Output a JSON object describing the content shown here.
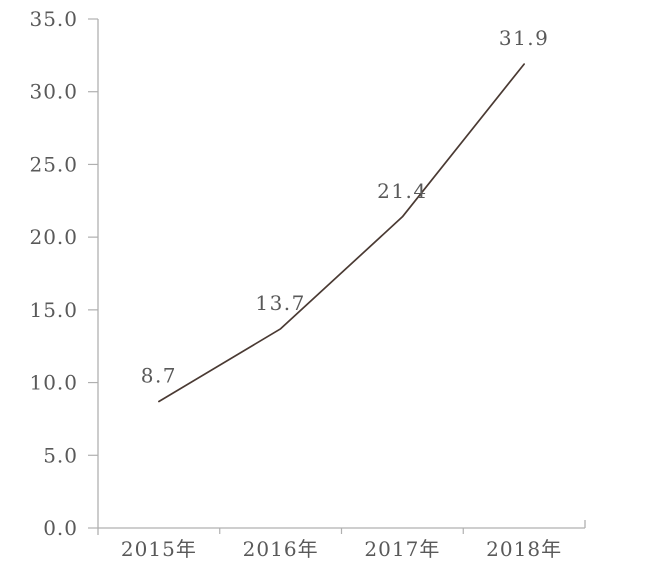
{
  "chart_data": {
    "type": "line",
    "title": "",
    "xlabel": "",
    "ylabel": "",
    "categories": [
      "2015年",
      "2016年",
      "2017年",
      "2018年"
    ],
    "series": [
      {
        "name": "",
        "values": [
          8.7,
          13.7,
          21.4,
          31.9
        ]
      }
    ],
    "data_labels": [
      "8.7",
      "13.7",
      "21.4",
      "31.9"
    ],
    "y_axis": {
      "min": 0,
      "max": 35,
      "step": 5,
      "tick_labels": [
        "0.0",
        "5.0",
        "10.0",
        "15.0",
        "20.0",
        "25.0",
        "30.0",
        "35.0"
      ]
    },
    "grid": false,
    "legend": "none",
    "colors": {
      "line": "#4a3a33",
      "text": "#595959",
      "axis": "#b0b0b0",
      "background": "#ffffff"
    }
  }
}
